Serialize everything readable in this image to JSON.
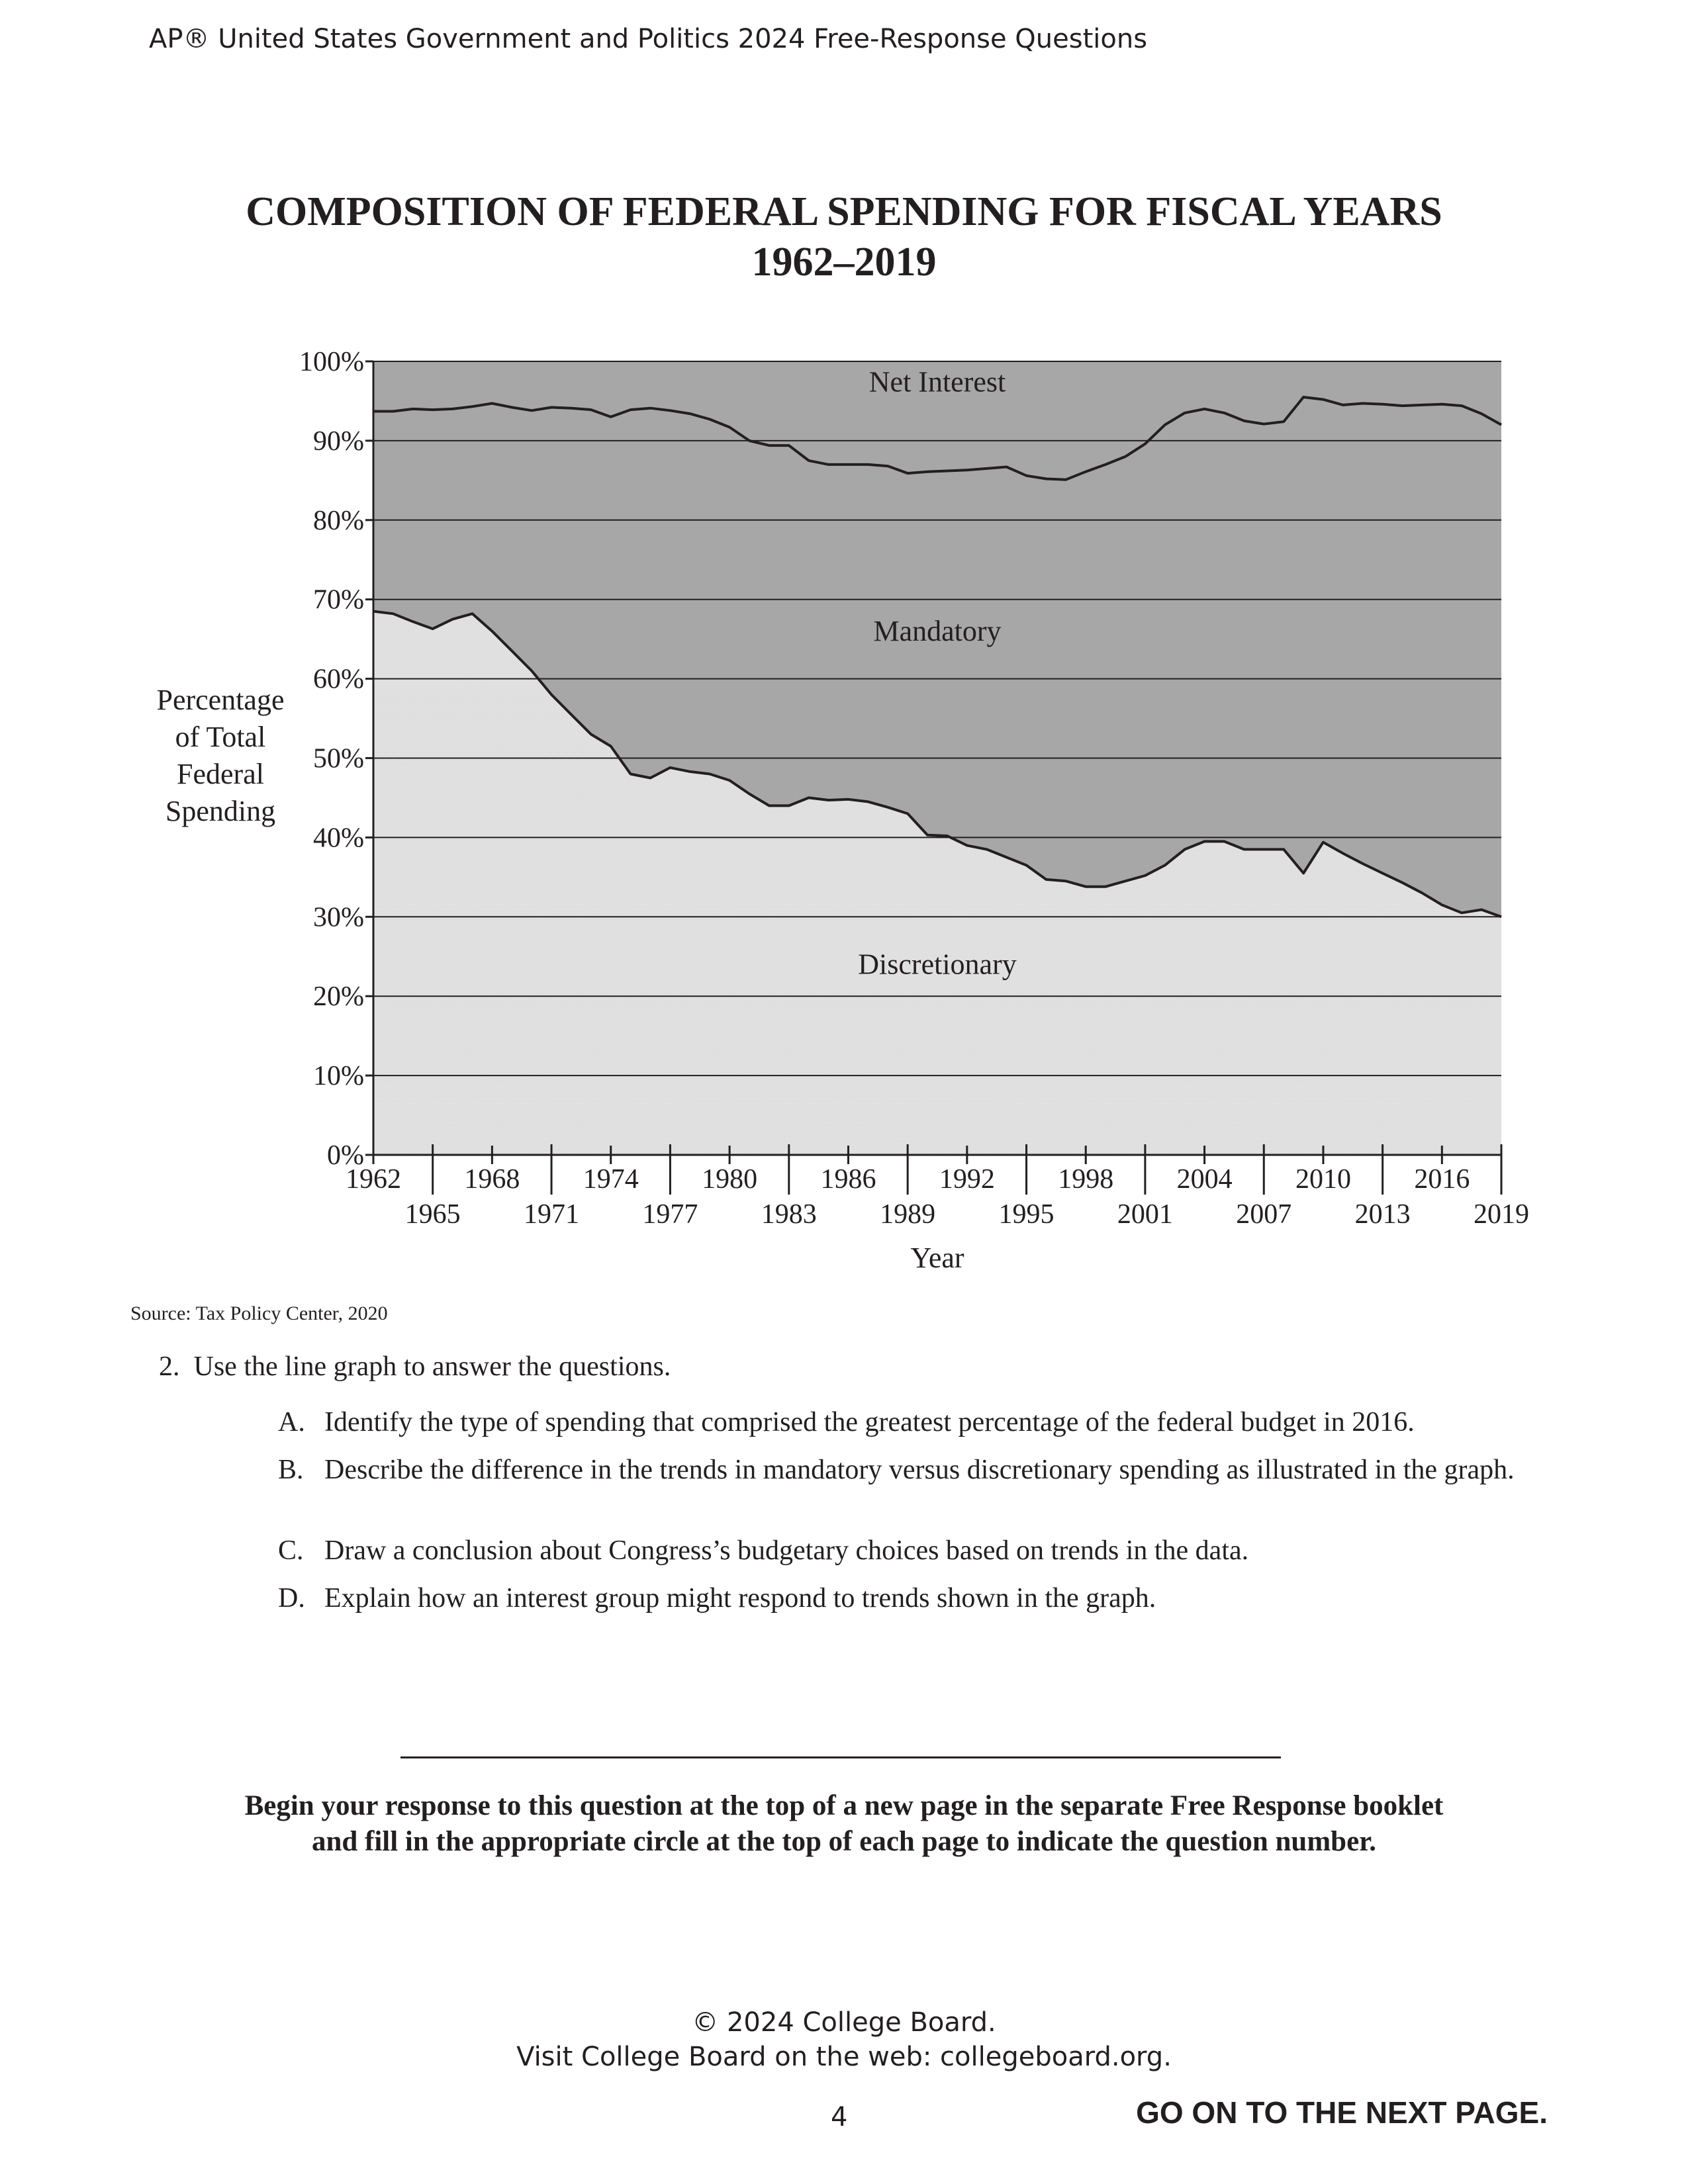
{
  "header": "AP® United States Government and Politics 2024 Free-Response Questions",
  "title_line1": "COMPOSITION OF FEDERAL SPENDING FOR FISCAL YEARS",
  "title_line2": "1962–2019",
  "source": "Source: Tax Policy Center, 2020",
  "question": {
    "stem": "2. Use the line graph to answer the questions.",
    "parts": [
      {
        "label": "A.",
        "text": "Identify the type of spending that comprised the greatest percentage of the federal budget in 2016."
      },
      {
        "label": "B.",
        "text": "Describe the difference in the trends in mandatory versus discretionary spending as illustrated in the graph."
      },
      {
        "label": "C.",
        "text": "Draw a conclusion about Congress’s budgetary choices based on trends in the data."
      },
      {
        "label": "D.",
        "text": "Explain how an interest group might respond to trends shown in the graph."
      }
    ]
  },
  "instructions_line1": "Begin your response to this question at the top of a new page in the separate Free Response booklet",
  "instructions_line2": "and fill in the appropriate circle at the top of each page to indicate the question number.",
  "footer_line1": "© 2024 College Board.",
  "footer_line2": "Visit College Board on the web: collegeboard.org.",
  "page_number": "4",
  "go_on": "GO ON TO THE NEXT PAGE.",
  "colors": {
    "discretionary": "#e6e6e6",
    "mandatory": "#a7a7a7",
    "net_interest": "#a7a7a7",
    "line": "#231f20"
  },
  "chart_data": {
    "type": "area",
    "stacked": true,
    "xlabel": "Year",
    "ylabel": "Percentage of Total Federal Spending",
    "ylim": [
      0,
      100
    ],
    "xlim": [
      1962,
      2019
    ],
    "y_ticks": [
      "0%",
      "10%",
      "20%",
      "30%",
      "40%",
      "50%",
      "60%",
      "70%",
      "80%",
      "90%",
      "100%"
    ],
    "x_ticks_top": [
      "1962",
      "1968",
      "1974",
      "1980",
      "1986",
      "1992",
      "1998",
      "2004",
      "2010",
      "2016"
    ],
    "x_ticks_bottom": [
      "1965",
      "1971",
      "1977",
      "1983",
      "1989",
      "1995",
      "2001",
      "2007",
      "2013",
      "2019"
    ],
    "area_labels": [
      "Net Interest",
      "Mandatory",
      "Discretionary"
    ],
    "x": [
      1962,
      1963,
      1964,
      1965,
      1966,
      1967,
      1968,
      1969,
      1970,
      1971,
      1972,
      1973,
      1974,
      1975,
      1976,
      1977,
      1978,
      1979,
      1980,
      1981,
      1982,
      1983,
      1984,
      1985,
      1986,
      1987,
      1988,
      1989,
      1990,
      1991,
      1992,
      1993,
      1994,
      1995,
      1996,
      1997,
      1998,
      1999,
      2000,
      2001,
      2002,
      2003,
      2004,
      2005,
      2006,
      2007,
      2008,
      2009,
      2010,
      2011,
      2012,
      2013,
      2014,
      2015,
      2016,
      2017,
      2018,
      2019
    ],
    "series": [
      {
        "name": "Discretionary",
        "values": [
          68.5,
          68.2,
          67.2,
          66.3,
          67.5,
          68.2,
          66.0,
          63.5,
          61.0,
          58.0,
          55.5,
          53.0,
          51.5,
          48.0,
          47.5,
          48.8,
          48.3,
          48.0,
          47.2,
          45.5,
          44.0,
          44.0,
          45.0,
          44.7,
          44.8,
          44.5,
          43.8,
          43.0,
          40.3,
          40.2,
          39.0,
          38.5,
          37.5,
          36.5,
          34.7,
          34.5,
          33.8,
          33.8,
          34.5,
          35.2,
          36.5,
          38.5,
          39.5,
          39.5,
          38.5,
          38.5,
          38.5,
          35.5,
          39.4,
          38.0,
          36.7,
          35.5,
          34.3,
          33.0,
          31.5,
          30.5,
          30.9,
          30.0
        ]
      },
      {
        "name": "Mandatory",
        "values": [
          25.2,
          25.5,
          26.8,
          27.6,
          26.5,
          26.1,
          28.7,
          30.7,
          32.8,
          36.2,
          38.6,
          40.9,
          41.5,
          45.9,
          46.6,
          45.0,
          45.1,
          44.7,
          44.5,
          44.5,
          45.4,
          45.4,
          42.5,
          42.3,
          42.2,
          42.5,
          43.0,
          42.9,
          45.8,
          46.0,
          47.3,
          48.0,
          49.2,
          49.1,
          50.5,
          50.6,
          52.3,
          53.2,
          53.5,
          54.4,
          55.5,
          55.0,
          54.5,
          54.0,
          54.0,
          53.6,
          53.9,
          60.0,
          55.8,
          56.5,
          58.0,
          59.1,
          60.1,
          61.5,
          63.1,
          63.9,
          62.5,
          62.0
        ]
      },
      {
        "name": "Net Interest",
        "values": [
          6.3,
          6.3,
          6.0,
          6.1,
          6.0,
          5.7,
          5.3,
          5.8,
          6.2,
          5.8,
          5.9,
          6.1,
          7.0,
          6.1,
          5.9,
          6.2,
          6.6,
          7.3,
          8.3,
          10.0,
          10.6,
          10.6,
          12.5,
          13.0,
          13.0,
          13.0,
          13.2,
          14.1,
          13.9,
          13.8,
          13.7,
          13.5,
          13.3,
          14.4,
          14.8,
          14.9,
          13.9,
          13.0,
          12.0,
          10.4,
          8.0,
          6.5,
          6.0,
          6.5,
          7.5,
          7.9,
          7.6,
          4.5,
          4.8,
          5.5,
          5.3,
          5.4,
          5.6,
          5.5,
          5.4,
          5.6,
          6.6,
          8.0
        ]
      }
    ]
  }
}
